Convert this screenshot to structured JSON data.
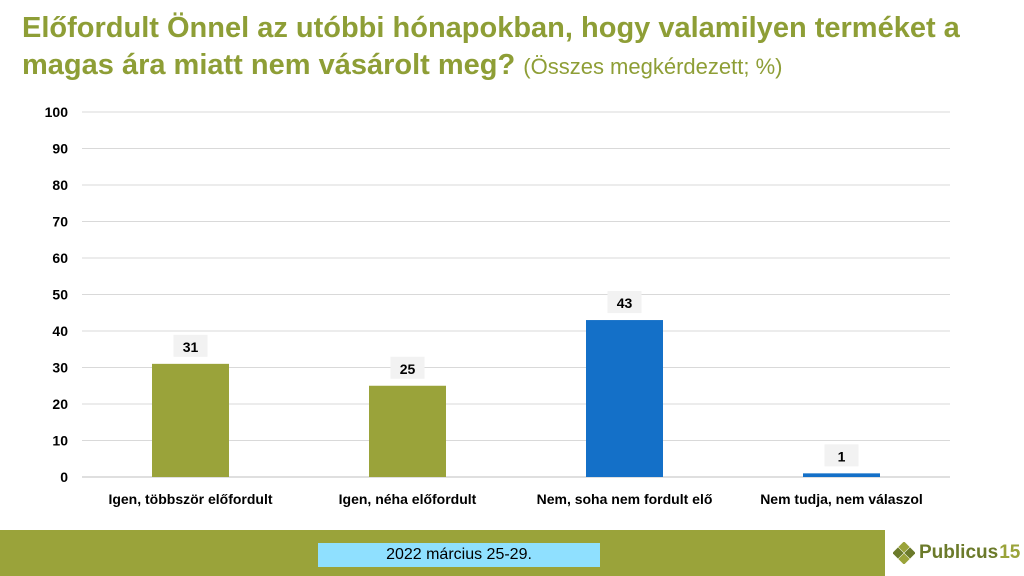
{
  "header": {
    "title_main": "Előfordult Önnel az utóbbi hónapokban, hogy valamilyen terméket a magas ára miatt nem vásárolt meg?",
    "title_sub": "(Összes megkérdezett; %)"
  },
  "chart_data": {
    "type": "bar",
    "categories": [
      "Igen, többször előfordult",
      "Igen, néha előfordult",
      "Nem, soha nem fordult elő",
      "Nem tudja, nem válaszol"
    ],
    "values": [
      31,
      25,
      43,
      1
    ],
    "bar_colors": [
      "#9aa33a",
      "#9aa33a",
      "#1470c8",
      "#1470c8"
    ],
    "ylim": [
      0,
      100
    ],
    "yticks": [
      0,
      10,
      20,
      30,
      40,
      50,
      60,
      70,
      80,
      90,
      100
    ],
    "grid": true,
    "legend": "none"
  },
  "footer": {
    "date": "2022 március 25-29."
  },
  "logo": {
    "text": "Publicus",
    "number": "15"
  },
  "colors": {
    "title": "#8e9e36",
    "footer_bar": "#9aa33a",
    "date_box": "#8fe0ff"
  }
}
